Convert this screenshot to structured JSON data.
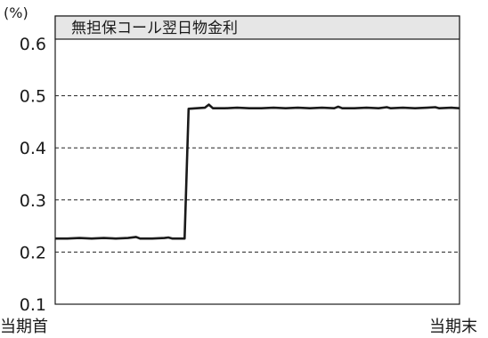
{
  "chart_data": {
    "type": "line",
    "title": "無担保コール翌日物金利",
    "y_unit": "(%)",
    "ylim": [
      0.1,
      0.6
    ],
    "yticks": [
      "0.6",
      "0.5",
      "0.4",
      "0.3",
      "0.2",
      "0.1"
    ],
    "gridlines": [
      0.5,
      0.4,
      0.3,
      0.2
    ],
    "grid_style": "dashed",
    "x_labels": {
      "start": "当期首",
      "end": "当期末"
    },
    "x_range": [
      0,
      100
    ],
    "series": [
      {
        "values": [
          [
            0,
            0.226
          ],
          [
            3,
            0.226
          ],
          [
            6,
            0.227
          ],
          [
            9,
            0.226
          ],
          [
            12,
            0.227
          ],
          [
            15,
            0.226
          ],
          [
            18,
            0.227
          ],
          [
            20,
            0.229
          ],
          [
            21,
            0.226
          ],
          [
            24,
            0.226
          ],
          [
            27,
            0.227
          ],
          [
            28,
            0.228
          ],
          [
            29,
            0.226
          ],
          [
            31,
            0.226
          ],
          [
            32,
            0.226
          ],
          [
            33,
            0.475
          ],
          [
            35,
            0.476
          ],
          [
            37,
            0.477
          ],
          [
            38,
            0.483
          ],
          [
            39,
            0.476
          ],
          [
            42,
            0.476
          ],
          [
            45,
            0.477
          ],
          [
            48,
            0.476
          ],
          [
            51,
            0.476
          ],
          [
            54,
            0.477
          ],
          [
            57,
            0.476
          ],
          [
            60,
            0.477
          ],
          [
            63,
            0.476
          ],
          [
            66,
            0.477
          ],
          [
            69,
            0.476
          ],
          [
            70,
            0.479
          ],
          [
            71,
            0.476
          ],
          [
            74,
            0.476
          ],
          [
            77,
            0.477
          ],
          [
            80,
            0.476
          ],
          [
            82,
            0.478
          ],
          [
            83,
            0.476
          ],
          [
            86,
            0.477
          ],
          [
            89,
            0.476
          ],
          [
            92,
            0.477
          ],
          [
            94,
            0.478
          ],
          [
            95,
            0.476
          ],
          [
            98,
            0.477
          ],
          [
            100,
            0.476
          ]
        ]
      }
    ]
  },
  "colors": {
    "line": "#1a1a1a",
    "axis": "#1a1a1a",
    "grid": "#222222",
    "title_bg": "#e6e6e6"
  }
}
